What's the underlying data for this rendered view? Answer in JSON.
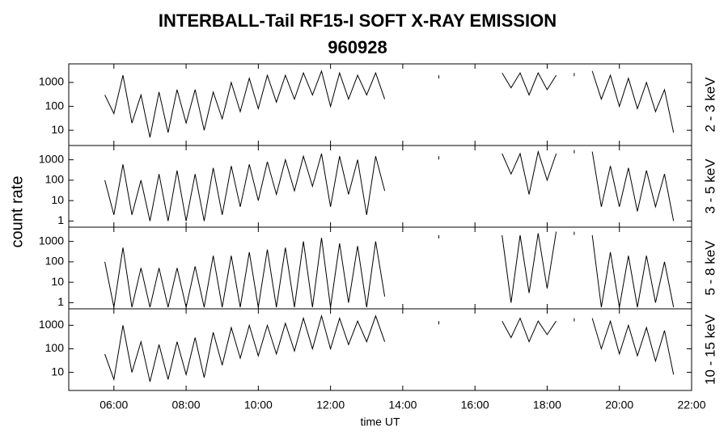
{
  "title": "INTERBALL-Tail RF15-I SOFT X-RAY EMISSION",
  "subtitle": "960928",
  "ylabel": "count rate",
  "chart_data": [
    {
      "type": "line",
      "ylabel": "2 - 3 keV",
      "log": true,
      "color": "#000000",
      "xlim": [
        4.75,
        22
      ],
      "ylim": [
        2.3,
        6000
      ],
      "yticks": [
        10,
        100,
        1000
      ],
      "x": [
        5.75,
        6,
        6.25,
        6.5,
        6.75,
        7,
        7.25,
        7.5,
        7.75,
        8,
        8.25,
        8.5,
        8.75,
        9,
        9.25,
        9.5,
        9.75,
        10,
        10.25,
        10.5,
        10.75,
        11,
        11.25,
        11.5,
        11.75,
        12,
        12.25,
        12.5,
        12.75,
        13,
        13.25,
        13.5,
        13.75,
        14,
        14.25,
        14.5,
        14.75,
        15,
        15.25,
        15.5,
        15.75,
        16,
        16.25,
        16.5,
        16.75,
        17,
        17.25,
        17.5,
        17.75,
        18,
        18.25,
        18.5,
        18.75,
        19,
        19.25,
        19.5,
        19.75,
        20,
        20.25,
        20.5,
        20.75,
        21,
        21.25,
        21.5
      ],
      "values": [
        300,
        50,
        2000,
        20,
        300,
        5,
        400,
        8,
        500,
        20,
        500,
        10,
        400,
        30,
        1000,
        60,
        1500,
        80,
        2000,
        150,
        2000,
        200,
        2500,
        300,
        3000,
        100,
        2500,
        200,
        2000,
        300,
        2500,
        200,
        null,
        null,
        null,
        null,
        null,
        2000,
        null,
        null,
        null,
        null,
        null,
        null,
        2500,
        600,
        2500,
        300,
        2500,
        500,
        2000,
        null,
        2500,
        null,
        3000,
        200,
        2000,
        100,
        1500,
        80,
        1000,
        60,
        500,
        8
      ]
    },
    {
      "type": "line",
      "ylabel": "3 - 5 keV",
      "log": true,
      "color": "#000000",
      "xlim": [
        4.75,
        22
      ],
      "ylim": [
        0.5,
        5000
      ],
      "yticks": [
        1,
        10,
        100,
        1000
      ],
      "x": [
        5.75,
        6,
        6.25,
        6.5,
        6.75,
        7,
        7.25,
        7.5,
        7.75,
        8,
        8.25,
        8.5,
        8.75,
        9,
        9.25,
        9.5,
        9.75,
        10,
        10.25,
        10.5,
        10.75,
        11,
        11.25,
        11.5,
        11.75,
        12,
        12.25,
        12.5,
        12.75,
        13,
        13.25,
        13.5,
        13.75,
        14,
        14.25,
        14.5,
        14.75,
        15,
        15.25,
        15.5,
        15.75,
        16,
        16.25,
        16.5,
        16.75,
        17,
        17.25,
        17.5,
        17.75,
        18,
        18.25,
        18.5,
        18.75,
        19,
        19.25,
        19.5,
        19.75,
        20,
        20.25,
        20.5,
        20.75,
        21,
        21.25,
        21.5
      ],
      "values": [
        100,
        2,
        600,
        2,
        100,
        1,
        200,
        1,
        300,
        1,
        200,
        1,
        400,
        2,
        500,
        5,
        600,
        10,
        800,
        20,
        1000,
        30,
        1500,
        50,
        2000,
        5,
        1500,
        20,
        1000,
        2,
        1500,
        30,
        null,
        null,
        null,
        null,
        null,
        1500,
        null,
        null,
        null,
        null,
        null,
        null,
        2000,
        200,
        2000,
        20,
        2500,
        100,
        2000,
        null,
        3000,
        null,
        2500,
        5,
        500,
        5,
        400,
        3,
        300,
        5,
        200,
        1
      ]
    },
    {
      "type": "line",
      "ylabel": "5 - 8 keV",
      "log": true,
      "color": "#000000",
      "xlim": [
        4.75,
        22
      ],
      "ylim": [
        0.5,
        5000
      ],
      "yticks": [
        1,
        10,
        100,
        1000
      ],
      "x": [
        5.75,
        6,
        6.25,
        6.5,
        6.75,
        7,
        7.25,
        7.5,
        7.75,
        8,
        8.25,
        8.5,
        8.75,
        9,
        9.25,
        9.5,
        9.75,
        10,
        10.25,
        10.5,
        10.75,
        11,
        11.25,
        11.5,
        11.75,
        12,
        12.25,
        12.5,
        12.75,
        13,
        13.25,
        13.5,
        13.75,
        14,
        14.25,
        14.5,
        14.75,
        15,
        15.25,
        15.5,
        15.75,
        16,
        16.25,
        16.5,
        16.75,
        17,
        17.25,
        17.5,
        17.75,
        18,
        18.25,
        18.5,
        18.75,
        19,
        19.25,
        19.5,
        19.75,
        20,
        20.25,
        20.5,
        20.75,
        21,
        21.25,
        21.5
      ],
      "values": [
        100,
        0.6,
        500,
        0.6,
        50,
        0.6,
        50,
        0.6,
        50,
        0.6,
        60,
        0.6,
        200,
        0.6,
        200,
        0.6,
        300,
        0.6,
        400,
        0.6,
        500,
        0.6,
        1000,
        0.6,
        1500,
        0.6,
        800,
        1,
        600,
        0.6,
        1000,
        2,
        null,
        null,
        null,
        null,
        null,
        2000,
        null,
        null,
        null,
        null,
        null,
        null,
        2000,
        1,
        2000,
        3,
        2500,
        5,
        3000,
        null,
        3000,
        null,
        2000,
        0.6,
        300,
        0.6,
        200,
        0.6,
        200,
        1,
        100,
        0.6
      ]
    },
    {
      "type": "line",
      "ylabel": "10 - 15 keV",
      "xlabel": "time UT",
      "log": true,
      "color": "#000000",
      "xlim": [
        4.75,
        22
      ],
      "ylim": [
        1.7,
        5000
      ],
      "yticks": [
        10,
        100,
        1000
      ],
      "xticks": [
        {
          "value": 6,
          "label": "06:00"
        },
        {
          "value": 8,
          "label": "08:00"
        },
        {
          "value": 10,
          "label": "10:00"
        },
        {
          "value": 12,
          "label": "12:00"
        },
        {
          "value": 14,
          "label": "14:00"
        },
        {
          "value": 16,
          "label": "16:00"
        },
        {
          "value": 18,
          "label": "18:00"
        },
        {
          "value": 20,
          "label": "20:00"
        },
        {
          "value": 22,
          "label": "22:00"
        }
      ],
      "x": [
        5.75,
        6,
        6.25,
        6.5,
        6.75,
        7,
        7.25,
        7.5,
        7.75,
        8,
        8.25,
        8.5,
        8.75,
        9,
        9.25,
        9.5,
        9.75,
        10,
        10.25,
        10.5,
        10.75,
        11,
        11.25,
        11.5,
        11.75,
        12,
        12.25,
        12.5,
        12.75,
        13,
        13.25,
        13.5,
        13.75,
        14,
        14.25,
        14.5,
        14.75,
        15,
        15.25,
        15.5,
        15.75,
        16,
        16.25,
        16.5,
        16.75,
        17,
        17.25,
        17.5,
        17.75,
        18,
        18.25,
        18.5,
        18.75,
        19,
        19.25,
        19.5,
        19.75,
        20,
        20.25,
        20.5,
        20.75,
        21,
        21.25,
        21.5
      ],
      "values": [
        60,
        5,
        1000,
        10,
        200,
        4,
        150,
        5,
        200,
        8,
        300,
        6,
        500,
        20,
        800,
        40,
        1000,
        50,
        1000,
        60,
        1200,
        80,
        2000,
        100,
        2500,
        100,
        2000,
        150,
        1500,
        200,
        2500,
        200,
        null,
        null,
        null,
        null,
        null,
        1500,
        null,
        null,
        null,
        null,
        null,
        null,
        1500,
        300,
        2000,
        200,
        1500,
        400,
        1500,
        null,
        2000,
        null,
        2000,
        100,
        1500,
        60,
        1000,
        50,
        800,
        30,
        600,
        8
      ]
    }
  ]
}
